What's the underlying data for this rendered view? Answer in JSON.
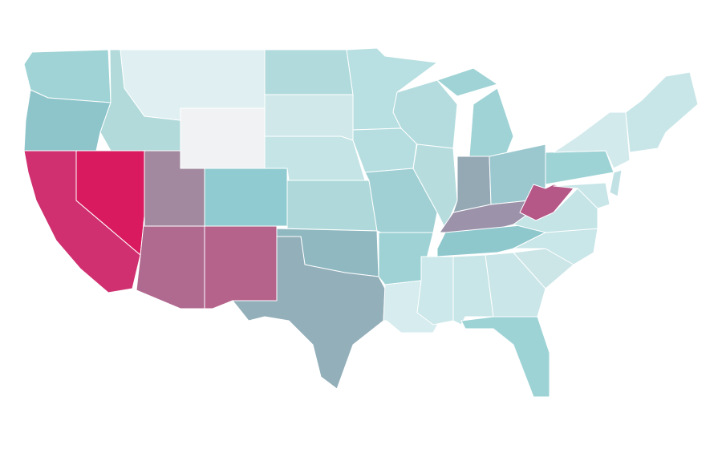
{
  "regions": [
    {
      "color": "#9fd3d5"
    },
    {
      "color": "#8ec5cb"
    },
    {
      "color": "#d03070"
    },
    {
      "color": "#d91a5f"
    },
    {
      "color": "#b2dada"
    },
    {
      "color": "#e0f0f2"
    },
    {
      "color": "#f0f2f4"
    },
    {
      "color": "#a2899f"
    },
    {
      "color": "#b06a90"
    },
    {
      "color": "#b5638b"
    },
    {
      "color": "#8fcbd0"
    },
    {
      "color": "#b0dadc"
    },
    {
      "color": "#d0e8ea"
    },
    {
      "color": "#c5e4e6"
    },
    {
      "color": "#aed8d9"
    },
    {
      "color": "#8fb8c0"
    },
    {
      "color": "#93afba"
    },
    {
      "color": "#b8dfe1"
    },
    {
      "color": "#b6dee0"
    },
    {
      "color": "#a0d0d4"
    },
    {
      "color": "#9ed2d5"
    },
    {
      "color": "#d6ecee"
    },
    {
      "color": "#b4dcde"
    },
    {
      "color": "#b6dcde"
    },
    {
      "color": "#a0d3d6"
    },
    {
      "color": "#a0d3d6"
    },
    {
      "color": "#95a9b5"
    },
    {
      "color": "#9bc8cf"
    },
    {
      "color": "#9c93ab"
    },
    {
      "color": "#8ec8cd"
    },
    {
      "color": "#cde8ea"
    },
    {
      "color": "#c8e6e8"
    },
    {
      "color": "#cbe6e8"
    },
    {
      "color": "#9ed3d6"
    },
    {
      "color": "#cce6e8"
    },
    {
      "color": "#c9e6e8"
    },
    {
      "color": "#c4e4e6"
    },
    {
      "color": "#b55888"
    },
    {
      "color": "#9ed3d6"
    },
    {
      "color": "#d3eaec"
    },
    {
      "color": "#c8e5e7"
    },
    {
      "color": "#c1e1e4"
    },
    {
      "color": "#c8e6e8"
    }
  ]
}
